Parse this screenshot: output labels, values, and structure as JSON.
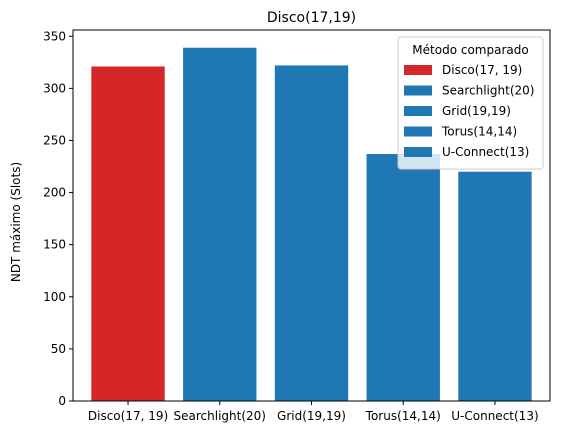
{
  "chart_data": {
    "type": "bar",
    "title": "Disco(17,19)",
    "xlabel": "",
    "ylabel": "NDT máximo (Slots)",
    "categories": [
      "Disco(17, 19)",
      "Searchlight(20)",
      "Grid(19,19)",
      "Torus(14,14)",
      "U-Connect(13)"
    ],
    "values": [
      321,
      339,
      322,
      237,
      220
    ],
    "colors": [
      "#d62728",
      "#1f77b4",
      "#1f77b4",
      "#1f77b4",
      "#1f77b4"
    ],
    "ylim": [
      0,
      356
    ],
    "yticks": [
      0,
      50,
      100,
      150,
      200,
      250,
      300,
      350
    ],
    "grid": false,
    "legend": {
      "title": "Método comparado",
      "placement": "top-right",
      "entries": [
        "Disco(17, 19)",
        "Searchlight(20)",
        "Grid(19,19)",
        "Torus(14,14)",
        "U-Connect(13)"
      ]
    }
  }
}
